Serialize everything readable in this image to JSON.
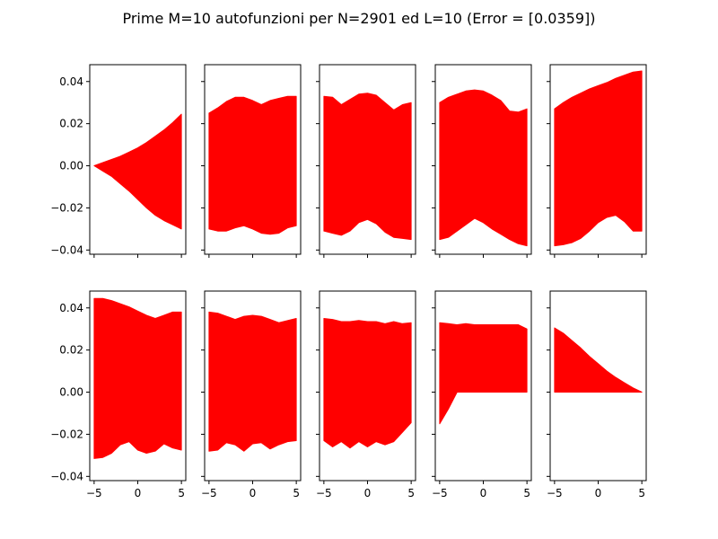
{
  "title": "Prime M=10 autofunzioni per N=2901 ed L=10 (Error = [0.0359])",
  "colors": {
    "fill": "#ff0000",
    "axis": "#000000",
    "background": "#ffffff"
  },
  "chart_data": {
    "type": "area",
    "layout": "2x5 grid",
    "sharex": true,
    "sharey": true,
    "xlim": [
      -5.5,
      5.5
    ],
    "ylim": [
      -0.042,
      0.048
    ],
    "xticks": [
      -5,
      0,
      5
    ],
    "xtick_labels": [
      "−5",
      "0",
      "5"
    ],
    "yticks": [
      0.04,
      0.02,
      0.0,
      -0.02,
      -0.04
    ],
    "ytick_labels": [
      "0.04",
      "0.02",
      "0.00",
      "−0.02",
      "−0.04"
    ],
    "grid": false,
    "legend": "none",
    "panels": [
      {
        "x": [
          -5,
          -4,
          -3,
          -2,
          -1,
          0,
          1,
          2,
          3,
          4,
          5
        ],
        "upper": [
          0,
          0.0015,
          0.003,
          0.0045,
          0.0065,
          0.0085,
          0.011,
          0.014,
          0.017,
          0.0205,
          0.0245
        ],
        "lower": [
          0,
          -0.0025,
          -0.005,
          -0.0085,
          -0.012,
          -0.016,
          -0.02,
          -0.0235,
          -0.026,
          -0.028,
          -0.03
        ]
      },
      {
        "x": [
          -5,
          -4,
          -3,
          -2,
          -1,
          0,
          1,
          2,
          3,
          4,
          5
        ],
        "upper": [
          0.025,
          0.0275,
          0.0305,
          0.0325,
          0.0325,
          0.031,
          0.029,
          0.031,
          0.032,
          0.033,
          0.033
        ],
        "lower": [
          -0.03,
          -0.031,
          -0.031,
          -0.0295,
          -0.0285,
          -0.03,
          -0.032,
          -0.0325,
          -0.032,
          -0.0295,
          -0.0285
        ]
      },
      {
        "x": [
          -5,
          -4,
          -3,
          -2,
          -1,
          0,
          1,
          2,
          3,
          4,
          5
        ],
        "upper": [
          0.033,
          0.0325,
          0.029,
          0.0315,
          0.034,
          0.0345,
          0.0335,
          0.03,
          0.0265,
          0.029,
          0.03
        ],
        "lower": [
          -0.031,
          -0.032,
          -0.033,
          -0.031,
          -0.027,
          -0.0255,
          -0.0275,
          -0.0315,
          -0.034,
          -0.0345,
          -0.035
        ]
      },
      {
        "x": [
          -5,
          -4,
          -3,
          -2,
          -1,
          0,
          1,
          2,
          3,
          4,
          5
        ],
        "upper": [
          0.03,
          0.0325,
          0.034,
          0.0355,
          0.036,
          0.0355,
          0.0335,
          0.031,
          0.026,
          0.0255,
          0.027
        ],
        "lower": [
          -0.035,
          -0.034,
          -0.031,
          -0.028,
          -0.025,
          -0.027,
          -0.03,
          -0.0325,
          -0.035,
          -0.037,
          -0.038
        ]
      },
      {
        "x": [
          -5,
          -4,
          -3,
          -2,
          -1,
          0,
          1,
          2,
          3,
          4,
          5
        ],
        "upper": [
          0.027,
          0.03,
          0.0325,
          0.0345,
          0.0365,
          0.038,
          0.0395,
          0.0415,
          0.043,
          0.0445,
          0.045
        ],
        "lower": [
          -0.038,
          -0.0375,
          -0.0365,
          -0.0345,
          -0.031,
          -0.027,
          -0.0245,
          -0.0235,
          -0.0265,
          -0.031,
          -0.031
        ]
      },
      {
        "x": [
          -5,
          -4,
          -3,
          -2,
          -1,
          0,
          1,
          2,
          3,
          4,
          5
        ],
        "upper": [
          0.0445,
          0.0445,
          0.0435,
          0.042,
          0.0405,
          0.0385,
          0.0365,
          0.035,
          0.0365,
          0.038,
          0.038
        ],
        "lower": [
          -0.0315,
          -0.031,
          -0.029,
          -0.025,
          -0.0235,
          -0.0275,
          -0.029,
          -0.028,
          -0.0245,
          -0.0265,
          -0.0275
        ]
      },
      {
        "x": [
          -5,
          -4,
          -3,
          -2,
          -1,
          0,
          1,
          2,
          3,
          4,
          5
        ],
        "upper": [
          0.038,
          0.0375,
          0.036,
          0.0345,
          0.036,
          0.0365,
          0.036,
          0.0345,
          0.033,
          0.034,
          0.035
        ],
        "lower": [
          -0.028,
          -0.0275,
          -0.024,
          -0.025,
          -0.028,
          -0.0245,
          -0.024,
          -0.027,
          -0.025,
          -0.0235,
          -0.023
        ]
      },
      {
        "x": [
          -5,
          -4,
          -3,
          -2,
          -1,
          0,
          1,
          2,
          3,
          4,
          5
        ],
        "upper": [
          0.035,
          0.0345,
          0.0335,
          0.0335,
          0.034,
          0.0335,
          0.0335,
          0.0325,
          0.0335,
          0.0325,
          0.033
        ],
        "lower": [
          -0.023,
          -0.026,
          -0.0235,
          -0.0265,
          -0.0235,
          -0.026,
          -0.0235,
          -0.025,
          -0.0235,
          -0.019,
          -0.0145
        ]
      },
      {
        "x": [
          -5,
          -4,
          -3,
          -2,
          -1,
          0,
          1,
          2,
          3,
          4,
          5
        ],
        "upper": [
          0.033,
          0.0325,
          0.032,
          0.0325,
          0.032,
          0.032,
          0.032,
          0.032,
          0.032,
          0.032,
          0.03
        ],
        "lower": [
          -0.015,
          -0.008,
          0,
          0,
          0,
          0,
          0,
          0,
          0,
          0,
          0
        ]
      },
      {
        "x": [
          -5,
          -4,
          -3,
          -2,
          -1,
          0,
          1,
          2,
          3,
          4,
          5
        ],
        "upper": [
          0.0305,
          0.028,
          0.0245,
          0.021,
          0.017,
          0.0135,
          0.01,
          0.007,
          0.0045,
          0.002,
          0
        ],
        "lower": [
          0,
          0,
          0,
          0,
          0,
          0,
          0,
          0,
          0,
          0,
          0
        ]
      }
    ]
  }
}
